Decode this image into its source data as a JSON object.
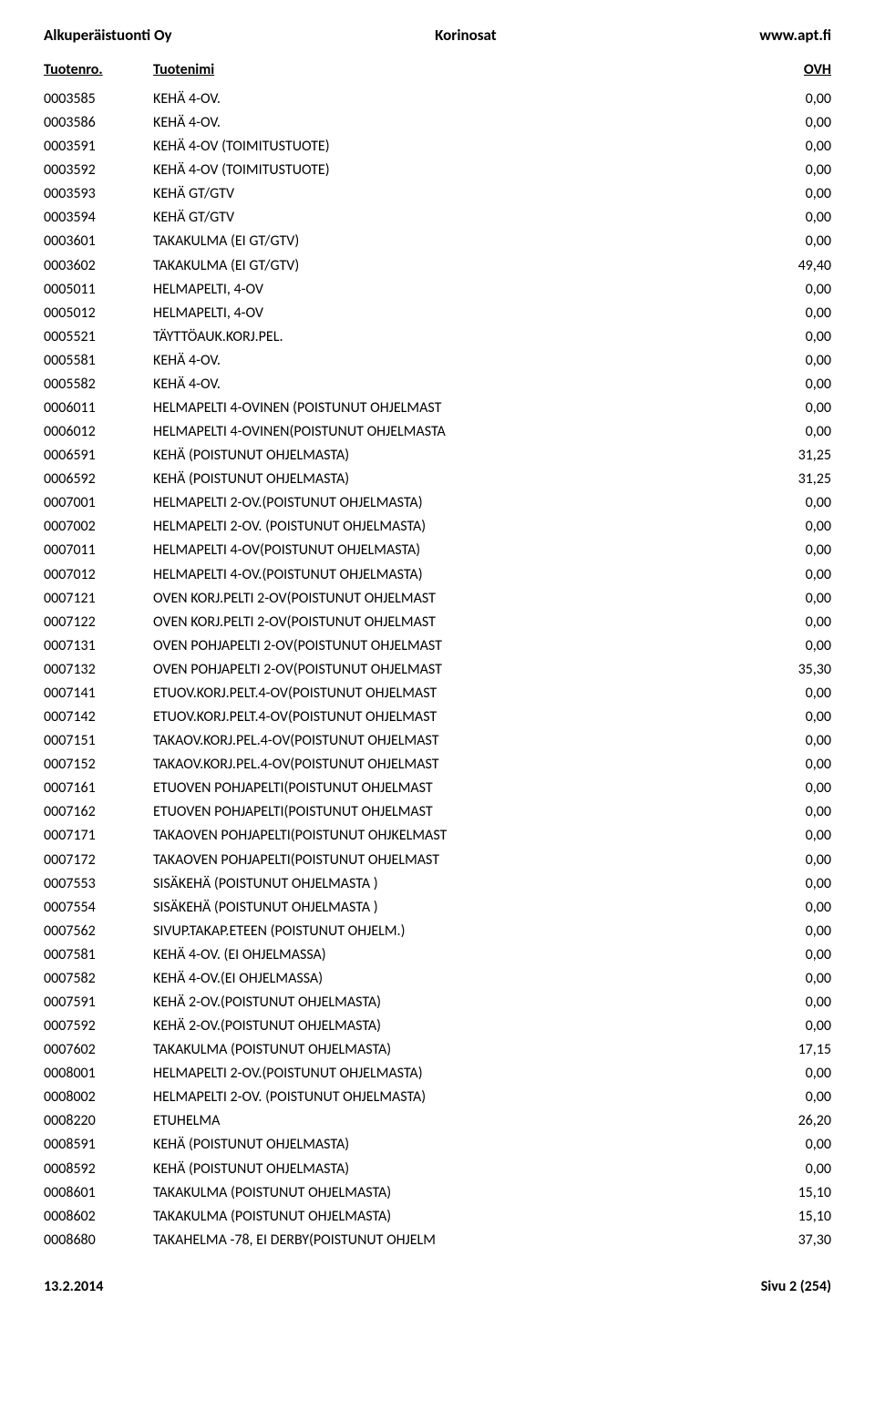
{
  "header": {
    "left": "Alkuperäistuonti Oy",
    "center": "Korinosat",
    "right": "www.apt.fi"
  },
  "columns": {
    "c1": "Tuotenro.",
    "c2": "Tuotenimi",
    "c3": "OVH"
  },
  "rows": [
    {
      "no": "0003585",
      "name": "KEHÄ 4-OV.",
      "price": "0,00"
    },
    {
      "no": "0003586",
      "name": "KEHÄ 4-OV.",
      "price": "0,00"
    },
    {
      "no": "0003591",
      "name": "KEHÄ 4-OV (TOIMITUSTUOTE)",
      "price": "0,00"
    },
    {
      "no": "0003592",
      "name": "KEHÄ 4-OV (TOIMITUSTUOTE)",
      "price": "0,00"
    },
    {
      "no": "0003593",
      "name": "KEHÄ GT/GTV",
      "price": "0,00"
    },
    {
      "no": "0003594",
      "name": "KEHÄ GT/GTV",
      "price": "0,00"
    },
    {
      "no": "0003601",
      "name": "TAKAKULMA (EI GT/GTV)",
      "price": "0,00"
    },
    {
      "no": "0003602",
      "name": "TAKAKULMA (EI GT/GTV)",
      "price": "49,40"
    },
    {
      "no": "0005011",
      "name": "HELMAPELTI,  4-OV",
      "price": "0,00"
    },
    {
      "no": "0005012",
      "name": "HELMAPELTI,  4-OV",
      "price": "0,00"
    },
    {
      "no": "0005521",
      "name": "TÄYTTÖAUK.KORJ.PEL.",
      "price": "0,00"
    },
    {
      "no": "0005581",
      "name": "KEHÄ 4-OV.",
      "price": "0,00"
    },
    {
      "no": "0005582",
      "name": "KEHÄ 4-OV.",
      "price": "0,00"
    },
    {
      "no": "0006011",
      "name": "HELMAPELTI 4-OVINEN (POISTUNUT OHJELMAST",
      "price": "0,00"
    },
    {
      "no": "0006012",
      "name": "HELMAPELTI 4-OVINEN(POISTUNUT OHJELMASTA",
      "price": "0,00"
    },
    {
      "no": "0006591",
      "name": "KEHÄ (POISTUNUT OHJELMASTA)",
      "price": "31,25"
    },
    {
      "no": "0006592",
      "name": "KEHÄ (POISTUNUT OHJELMASTA)",
      "price": "31,25"
    },
    {
      "no": "0007001",
      "name": "HELMAPELTI 2-OV.(POISTUNUT OHJELMASTA)",
      "price": "0,00"
    },
    {
      "no": "0007002",
      "name": "HELMAPELTI 2-OV. (POISTUNUT OHJELMASTA)",
      "price": "0,00"
    },
    {
      "no": "0007011",
      "name": "HELMAPELTI 4-OV(POISTUNUT OHJELMASTA)",
      "price": "0,00"
    },
    {
      "no": "0007012",
      "name": "HELMAPELTI 4-OV.(POISTUNUT OHJELMASTA)",
      "price": "0,00"
    },
    {
      "no": "0007121",
      "name": "OVEN KORJ.PELTI 2-OV(POISTUNUT OHJELMAST",
      "price": "0,00"
    },
    {
      "no": "0007122",
      "name": "OVEN KORJ.PELTI 2-OV(POISTUNUT OHJELMAST",
      "price": "0,00"
    },
    {
      "no": "0007131",
      "name": "OVEN POHJAPELTI 2-OV(POISTUNUT OHJELMAST",
      "price": "0,00"
    },
    {
      "no": "0007132",
      "name": "OVEN POHJAPELTI 2-OV(POISTUNUT OHJELMAST",
      "price": "35,30"
    },
    {
      "no": "0007141",
      "name": "ETUOV.KORJ.PELT.4-OV(POISTUNUT OHJELMAST",
      "price": "0,00"
    },
    {
      "no": "0007142",
      "name": "ETUOV.KORJ.PELT.4-OV(POISTUNUT OHJELMAST",
      "price": "0,00"
    },
    {
      "no": "0007151",
      "name": "TAKAOV.KORJ.PEL.4-OV(POISTUNUT OHJELMAST",
      "price": "0,00"
    },
    {
      "no": "0007152",
      "name": "TAKAOV.KORJ.PEL.4-OV(POISTUNUT OHJELMAST",
      "price": "0,00"
    },
    {
      "no": "0007161",
      "name": "ETUOVEN POHJAPELTI(POISTUNUT OHJELMAST",
      "price": "0,00"
    },
    {
      "no": "0007162",
      "name": "ETUOVEN POHJAPELTI(POISTUNUT OHJELMAST",
      "price": "0,00"
    },
    {
      "no": "0007171",
      "name": "TAKAOVEN POHJAPELTI(POISTUNUT OHJKELMAST",
      "price": "0,00"
    },
    {
      "no": "0007172",
      "name": "TAKAOVEN POHJAPELTI(POISTUNUT OHJELMAST",
      "price": "0,00"
    },
    {
      "no": "0007553",
      "name": "SISÄKEHÄ (POISTUNUT OHJELMASTA )",
      "price": "0,00"
    },
    {
      "no": "0007554",
      "name": "SISÄKEHÄ (POISTUNUT OHJELMASTA )",
      "price": "0,00"
    },
    {
      "no": "0007562",
      "name": "SIVUP.TAKAP.ETEEN (POISTUNUT OHJELM.)",
      "price": "0,00"
    },
    {
      "no": "0007581",
      "name": "KEHÄ 4-OV. (EI OHJELMASSA)",
      "price": "0,00"
    },
    {
      "no": "0007582",
      "name": "KEHÄ 4-OV.(EI OHJELMASSA)",
      "price": "0,00"
    },
    {
      "no": "0007591",
      "name": "KEHÄ 2-OV.(POISTUNUT OHJELMASTA)",
      "price": "0,00"
    },
    {
      "no": "0007592",
      "name": "KEHÄ 2-OV.(POISTUNUT OHJELMASTA)",
      "price": "0,00"
    },
    {
      "no": "0007602",
      "name": "TAKAKULMA (POISTUNUT OHJELMASTA)",
      "price": "17,15"
    },
    {
      "no": "0008001",
      "name": "HELMAPELTI 2-OV.(POISTUNUT OHJELMASTA)",
      "price": "0,00"
    },
    {
      "no": "0008002",
      "name": "HELMAPELTI 2-OV. (POISTUNUT OHJELMASTA)",
      "price": "0,00"
    },
    {
      "no": "0008220",
      "name": "ETUHELMA",
      "price": "26,20"
    },
    {
      "no": "0008591",
      "name": "KEHÄ (POISTUNUT OHJELMASTA)",
      "price": "0,00"
    },
    {
      "no": "0008592",
      "name": "KEHÄ (POISTUNUT OHJELMASTA)",
      "price": "0,00"
    },
    {
      "no": "0008601",
      "name": "TAKAKULMA (POISTUNUT OHJELMASTA)",
      "price": "15,10"
    },
    {
      "no": "0008602",
      "name": "TAKAKULMA (POISTUNUT OHJELMASTA)",
      "price": "15,10"
    },
    {
      "no": "0008680",
      "name": "TAKAHELMA -78, EI DERBY(POISTUNUT OHJELM",
      "price": "37,30"
    }
  ],
  "footer": {
    "left": "13.2.2014",
    "right": "Sivu 2 (254)"
  }
}
